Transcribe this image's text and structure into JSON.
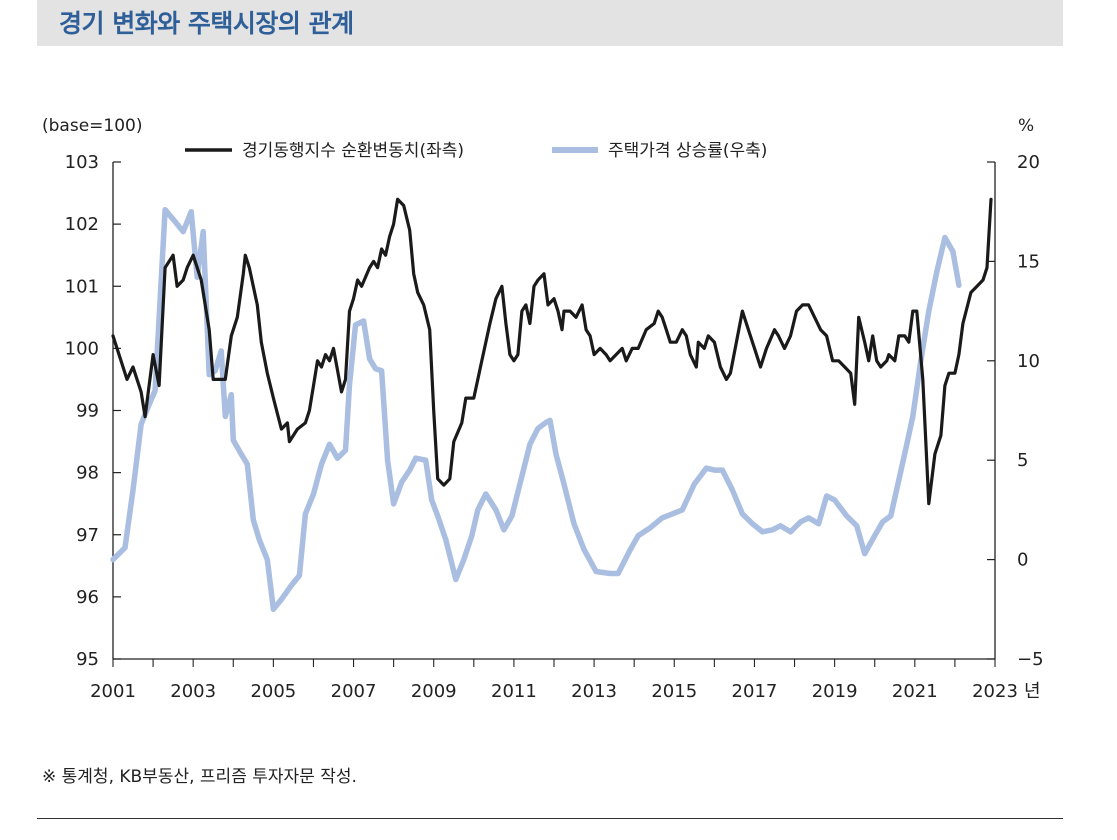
{
  "title": "경기 변화와 주택시장의 관계",
  "source_note": "※ 통계청, KB부동산, 프리즘 투자자문 작성.",
  "colors": {
    "title": "#2f5f99",
    "series_black": "#1a1a1a",
    "series_blue": "#a9bee0"
  },
  "chart_data": {
    "type": "line",
    "left_axis_label": "(base=100)",
    "right_axis_label": "%",
    "x_unit": "년",
    "x_range": [
      2001,
      2023
    ],
    "x_ticks": [
      "2001",
      "2003",
      "2005",
      "2007",
      "2009",
      "2011",
      "2013",
      "2015",
      "2017",
      "2019",
      "2021",
      "2023"
    ],
    "ylim_left": [
      95,
      103
    ],
    "yticks_left": [
      "103",
      "102",
      "101",
      "100",
      "99",
      "98",
      "97",
      "96",
      "95"
    ],
    "ylim_right": [
      -5,
      20
    ],
    "yticks_right": [
      "20",
      "15",
      "10",
      "5",
      "0",
      "−5"
    ],
    "series": [
      {
        "name": "경기동행지수 순환변동치(좌측)",
        "axis": "left",
        "points": [
          [
            2001.0,
            100.2
          ],
          [
            2001.2,
            99.8
          ],
          [
            2001.35,
            99.5
          ],
          [
            2001.5,
            99.7
          ],
          [
            2001.7,
            99.3
          ],
          [
            2001.8,
            98.9
          ],
          [
            2001.9,
            99.4
          ],
          [
            2002.0,
            99.9
          ],
          [
            2002.15,
            99.4
          ],
          [
            2002.3,
            101.3
          ],
          [
            2002.5,
            101.5
          ],
          [
            2002.6,
            101.0
          ],
          [
            2002.75,
            101.1
          ],
          [
            2002.85,
            101.3
          ],
          [
            2003.0,
            101.5
          ],
          [
            2003.2,
            101.1
          ],
          [
            2003.4,
            100.3
          ],
          [
            2003.5,
            99.5
          ],
          [
            2003.8,
            99.5
          ],
          [
            2003.95,
            100.2
          ],
          [
            2004.1,
            100.5
          ],
          [
            2004.25,
            101.2
          ],
          [
            2004.3,
            101.5
          ],
          [
            2004.4,
            101.3
          ],
          [
            2004.5,
            101.0
          ],
          [
            2004.6,
            100.7
          ],
          [
            2004.7,
            100.1
          ],
          [
            2004.85,
            99.6
          ],
          [
            2005.0,
            99.2
          ],
          [
            2005.2,
            98.7
          ],
          [
            2005.35,
            98.8
          ],
          [
            2005.4,
            98.5
          ],
          [
            2005.6,
            98.7
          ],
          [
            2005.8,
            98.8
          ],
          [
            2005.9,
            99.0
          ],
          [
            2006.0,
            99.4
          ],
          [
            2006.1,
            99.8
          ],
          [
            2006.2,
            99.7
          ],
          [
            2006.3,
            99.9
          ],
          [
            2006.4,
            99.8
          ],
          [
            2006.5,
            100.0
          ],
          [
            2006.7,
            99.3
          ],
          [
            2006.8,
            99.5
          ],
          [
            2006.9,
            100.6
          ],
          [
            2007.0,
            100.8
          ],
          [
            2007.1,
            101.1
          ],
          [
            2007.2,
            101.0
          ],
          [
            2007.4,
            101.3
          ],
          [
            2007.5,
            101.4
          ],
          [
            2007.6,
            101.3
          ],
          [
            2007.7,
            101.6
          ],
          [
            2007.8,
            101.5
          ],
          [
            2007.9,
            101.8
          ],
          [
            2008.0,
            102.0
          ],
          [
            2008.1,
            102.4
          ],
          [
            2008.25,
            102.3
          ],
          [
            2008.4,
            101.9
          ],
          [
            2008.5,
            101.2
          ],
          [
            2008.6,
            100.9
          ],
          [
            2008.75,
            100.7
          ],
          [
            2008.9,
            100.3
          ],
          [
            2009.0,
            99.0
          ],
          [
            2009.1,
            97.9
          ],
          [
            2009.25,
            97.8
          ],
          [
            2009.4,
            97.9
          ],
          [
            2009.5,
            98.5
          ],
          [
            2009.7,
            98.8
          ],
          [
            2009.8,
            99.2
          ],
          [
            2010.0,
            99.2
          ],
          [
            2010.2,
            99.8
          ],
          [
            2010.4,
            100.4
          ],
          [
            2010.55,
            100.8
          ],
          [
            2010.7,
            101.0
          ],
          [
            2010.8,
            100.4
          ],
          [
            2010.9,
            99.9
          ],
          [
            2011.0,
            99.8
          ],
          [
            2011.1,
            99.9
          ],
          [
            2011.2,
            100.6
          ],
          [
            2011.3,
            100.7
          ],
          [
            2011.4,
            100.4
          ],
          [
            2011.5,
            101.0
          ],
          [
            2011.6,
            101.1
          ],
          [
            2011.75,
            101.2
          ],
          [
            2011.85,
            100.7
          ],
          [
            2012.0,
            100.8
          ],
          [
            2012.1,
            100.6
          ],
          [
            2012.2,
            100.3
          ],
          [
            2012.25,
            100.6
          ],
          [
            2012.4,
            100.6
          ],
          [
            2012.55,
            100.5
          ],
          [
            2012.7,
            100.7
          ],
          [
            2012.8,
            100.3
          ],
          [
            2012.9,
            100.2
          ],
          [
            2013.0,
            99.9
          ],
          [
            2013.15,
            100.0
          ],
          [
            2013.3,
            99.9
          ],
          [
            2013.4,
            99.8
          ],
          [
            2013.55,
            99.9
          ],
          [
            2013.7,
            100.0
          ],
          [
            2013.8,
            99.8
          ],
          [
            2013.95,
            100.0
          ],
          [
            2014.1,
            100.0
          ],
          [
            2014.3,
            100.3
          ],
          [
            2014.5,
            100.4
          ],
          [
            2014.6,
            100.6
          ],
          [
            2014.7,
            100.5
          ],
          [
            2014.8,
            100.3
          ],
          [
            2014.9,
            100.1
          ],
          [
            2015.05,
            100.1
          ],
          [
            2015.2,
            100.3
          ],
          [
            2015.3,
            100.2
          ],
          [
            2015.4,
            99.9
          ],
          [
            2015.55,
            99.7
          ],
          [
            2015.6,
            100.1
          ],
          [
            2015.75,
            100.0
          ],
          [
            2015.85,
            100.2
          ],
          [
            2016.0,
            100.1
          ],
          [
            2016.15,
            99.7
          ],
          [
            2016.3,
            99.5
          ],
          [
            2016.4,
            99.6
          ],
          [
            2016.55,
            100.1
          ],
          [
            2016.7,
            100.6
          ],
          [
            2016.85,
            100.3
          ],
          [
            2017.0,
            100.0
          ],
          [
            2017.15,
            99.7
          ],
          [
            2017.3,
            100.0
          ],
          [
            2017.5,
            100.3
          ],
          [
            2017.6,
            100.2
          ],
          [
            2017.75,
            100.0
          ],
          [
            2017.9,
            100.2
          ],
          [
            2018.05,
            100.6
          ],
          [
            2018.2,
            100.7
          ],
          [
            2018.35,
            100.7
          ],
          [
            2018.5,
            100.5
          ],
          [
            2018.65,
            100.3
          ],
          [
            2018.8,
            100.2
          ],
          [
            2018.95,
            99.8
          ],
          [
            2019.1,
            99.8
          ],
          [
            2019.25,
            99.7
          ],
          [
            2019.4,
            99.6
          ],
          [
            2019.5,
            99.1
          ],
          [
            2019.6,
            100.5
          ],
          [
            2019.75,
            100.1
          ],
          [
            2019.85,
            99.8
          ],
          [
            2019.95,
            100.2
          ],
          [
            2020.05,
            99.8
          ],
          [
            2020.15,
            99.7
          ],
          [
            2020.3,
            99.8
          ],
          [
            2020.35,
            99.9
          ],
          [
            2020.5,
            99.8
          ],
          [
            2020.6,
            100.2
          ],
          [
            2020.75,
            100.2
          ],
          [
            2020.85,
            100.1
          ],
          [
            2020.95,
            100.6
          ],
          [
            2021.05,
            100.6
          ],
          [
            2021.2,
            99.5
          ],
          [
            2021.35,
            97.5
          ],
          [
            2021.5,
            98.3
          ],
          [
            2021.65,
            98.6
          ],
          [
            2021.75,
            99.4
          ],
          [
            2021.85,
            99.6
          ],
          [
            2022.0,
            99.6
          ],
          [
            2022.1,
            99.9
          ],
          [
            2022.2,
            100.4
          ],
          [
            2022.4,
            100.9
          ],
          [
            2022.55,
            101.0
          ],
          [
            2022.7,
            101.1
          ],
          [
            2022.8,
            101.3
          ],
          [
            2022.9,
            102.4
          ]
        ]
      },
      {
        "name": "주택가격 상승률(우축)",
        "axis": "right",
        "points": [
          [
            2001.0,
            0.0
          ],
          [
            2001.3,
            0.6
          ],
          [
            2001.5,
            3.5
          ],
          [
            2001.7,
            6.8
          ],
          [
            2001.9,
            7.8
          ],
          [
            2002.05,
            8.5
          ],
          [
            2002.3,
            17.6
          ],
          [
            2002.55,
            17.0
          ],
          [
            2002.75,
            16.5
          ],
          [
            2002.95,
            17.5
          ],
          [
            2003.1,
            14.2
          ],
          [
            2003.25,
            16.5
          ],
          [
            2003.4,
            9.3
          ],
          [
            2003.55,
            9.5
          ],
          [
            2003.7,
            10.5
          ],
          [
            2003.8,
            7.2
          ],
          [
            2003.95,
            8.3
          ],
          [
            2004.0,
            6.0
          ],
          [
            2004.2,
            5.3
          ],
          [
            2004.35,
            4.8
          ],
          [
            2004.5,
            2.0
          ],
          [
            2004.65,
            1.0
          ],
          [
            2004.85,
            0.0
          ],
          [
            2005.0,
            -2.5
          ],
          [
            2005.2,
            -2.0
          ],
          [
            2005.45,
            -1.3
          ],
          [
            2005.65,
            -0.8
          ],
          [
            2005.8,
            2.3
          ],
          [
            2006.0,
            3.3
          ],
          [
            2006.2,
            4.8
          ],
          [
            2006.4,
            5.8
          ],
          [
            2006.6,
            5.1
          ],
          [
            2006.8,
            5.5
          ],
          [
            2006.9,
            8.8
          ],
          [
            2007.05,
            11.8
          ],
          [
            2007.25,
            12.0
          ],
          [
            2007.4,
            10.1
          ],
          [
            2007.55,
            9.6
          ],
          [
            2007.7,
            9.5
          ],
          [
            2007.85,
            5.0
          ],
          [
            2008.0,
            2.8
          ],
          [
            2008.2,
            3.9
          ],
          [
            2008.4,
            4.5
          ],
          [
            2008.55,
            5.1
          ],
          [
            2008.8,
            5.0
          ],
          [
            2008.95,
            3.0
          ],
          [
            2009.1,
            2.2
          ],
          [
            2009.3,
            1.0
          ],
          [
            2009.55,
            -1.0
          ],
          [
            2009.75,
            0.0
          ],
          [
            2009.95,
            1.2
          ],
          [
            2010.1,
            2.5
          ],
          [
            2010.3,
            3.3
          ],
          [
            2010.55,
            2.5
          ],
          [
            2010.75,
            1.5
          ],
          [
            2010.95,
            2.2
          ],
          [
            2011.15,
            3.8
          ],
          [
            2011.4,
            5.8
          ],
          [
            2011.6,
            6.6
          ],
          [
            2011.8,
            6.9
          ],
          [
            2011.9,
            7.0
          ],
          [
            2012.05,
            5.3
          ],
          [
            2012.25,
            3.8
          ],
          [
            2012.5,
            1.8
          ],
          [
            2012.75,
            0.5
          ],
          [
            2013.05,
            -0.6
          ],
          [
            2013.4,
            -0.7
          ],
          [
            2013.6,
            -0.7
          ],
          [
            2013.9,
            0.5
          ],
          [
            2014.1,
            1.2
          ],
          [
            2014.4,
            1.6
          ],
          [
            2014.7,
            2.1
          ],
          [
            2014.95,
            2.3
          ],
          [
            2015.2,
            2.5
          ],
          [
            2015.5,
            3.8
          ],
          [
            2015.8,
            4.6
          ],
          [
            2016.0,
            4.5
          ],
          [
            2016.2,
            4.5
          ],
          [
            2016.45,
            3.5
          ],
          [
            2016.7,
            2.3
          ],
          [
            2016.95,
            1.8
          ],
          [
            2017.2,
            1.4
          ],
          [
            2017.45,
            1.5
          ],
          [
            2017.65,
            1.7
          ],
          [
            2017.9,
            1.4
          ],
          [
            2018.15,
            1.9
          ],
          [
            2018.35,
            2.1
          ],
          [
            2018.6,
            1.8
          ],
          [
            2018.8,
            3.2
          ],
          [
            2019.0,
            3.0
          ],
          [
            2019.3,
            2.2
          ],
          [
            2019.55,
            1.7
          ],
          [
            2019.75,
            0.3
          ],
          [
            2020.0,
            1.2
          ],
          [
            2020.2,
            1.9
          ],
          [
            2020.4,
            2.2
          ],
          [
            2020.6,
            4.0
          ],
          [
            2020.8,
            5.8
          ],
          [
            2020.95,
            7.2
          ],
          [
            2021.15,
            10.0
          ],
          [
            2021.35,
            12.5
          ],
          [
            2021.55,
            14.5
          ],
          [
            2021.75,
            16.2
          ],
          [
            2021.95,
            15.5
          ],
          [
            2022.1,
            13.8
          ]
        ]
      }
    ]
  }
}
